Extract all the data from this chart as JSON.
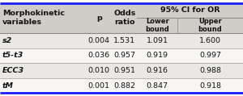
{
  "span_header": "95% CI for OR",
  "col_headers_main": [
    "Morphokinetic\nvariables",
    "p",
    "Odds\nratio"
  ],
  "col_headers_sub": [
    "Lower\nbound",
    "Upper\nbound"
  ],
  "rows": [
    [
      "s2",
      "0.004",
      "1.531",
      "1.091",
      "1.600"
    ],
    [
      "t5-t3",
      "0.036",
      "0.957",
      "0.919",
      "0.997"
    ],
    [
      "ECC3",
      "0.010",
      "0.951",
      "0.916",
      "0.988"
    ],
    [
      "tM",
      "0.001",
      "0.882",
      "0.847",
      "0.918"
    ]
  ],
  "bg_header": "#d0ccc8",
  "bg_row_odd": "#eae8e5",
  "bg_row_even": "#f7f6f4",
  "text_color": "#111111",
  "border_color_outer": "#1a1aff",
  "border_color_inner": "#888880",
  "font_size": 6.8,
  "header_font_size": 6.8,
  "figsize": [
    3.0,
    1.19
  ],
  "dpi": 100
}
